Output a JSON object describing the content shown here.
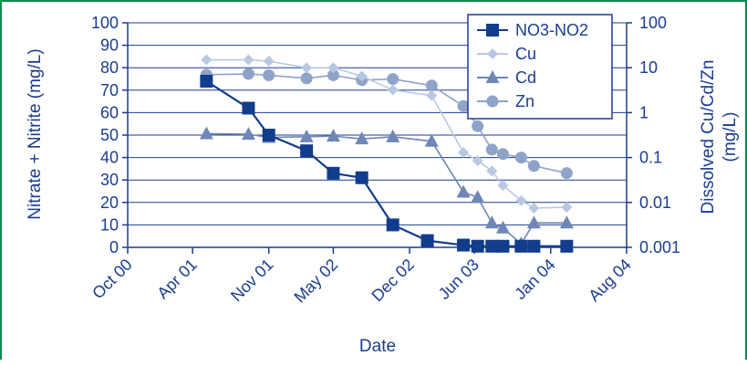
{
  "chart_data": {
    "type": "line",
    "xlabel": "Date",
    "ylabel": "Nitrate + Nitrite (mg/L)",
    "y2label_line1": "Dissolved Cu/Cd/Zn",
    "y2label_line2": "(mg/L)",
    "x_ticks": [
      {
        "label": "Oct 00",
        "date": "2000-10-01"
      },
      {
        "label": "Apr 01",
        "date": "2001-04-01"
      },
      {
        "label": "Nov 01",
        "date": "2001-11-01"
      },
      {
        "label": "May 02",
        "date": "2002-05-01"
      },
      {
        "label": "Dec 02",
        "date": "2002-12-01"
      },
      {
        "label": "Jun 03",
        "date": "2003-06-01"
      },
      {
        "label": "Jan 04",
        "date": "2004-01-01"
      },
      {
        "label": "Aug 04",
        "date": "2004-08-01"
      }
    ],
    "xlim": [
      "2000-10-01",
      "2004-08-01"
    ],
    "ylim": [
      0,
      100
    ],
    "y_ticks": [
      0,
      10,
      20,
      30,
      40,
      50,
      60,
      70,
      80,
      90,
      100
    ],
    "y2lim": [
      0.001,
      100
    ],
    "y2_scale": "log",
    "y2_ticks": [
      {
        "label": "0.001",
        "value": 0.001
      },
      {
        "label": "0.01",
        "value": 0.01
      },
      {
        "label": "0.1",
        "value": 0.1
      },
      {
        "label": "1",
        "value": 1
      },
      {
        "label": "10",
        "value": 10
      },
      {
        "label": "100",
        "value": 100
      }
    ],
    "grid": "horizontal",
    "legend": "top-right",
    "series": [
      {
        "name": "NO3-NO2",
        "axis": "left",
        "marker": "square",
        "color": "#123c8c",
        "points": [
          {
            "x": "2001-05-10",
            "y": 74
          },
          {
            "x": "2001-09-05",
            "y": 62
          },
          {
            "x": "2001-11-01",
            "y": 50
          },
          {
            "x": "2002-02-15",
            "y": 43
          },
          {
            "x": "2002-05-01",
            "y": 33
          },
          {
            "x": "2002-07-20",
            "y": 31
          },
          {
            "x": "2002-10-15",
            "y": 10
          },
          {
            "x": "2003-01-20",
            "y": 3
          },
          {
            "x": "2003-05-01",
            "y": 1
          },
          {
            "x": "2003-06-10",
            "y": 0.5
          },
          {
            "x": "2003-07-20",
            "y": 0.5
          },
          {
            "x": "2003-08-20",
            "y": 0.5
          },
          {
            "x": "2003-10-10",
            "y": 0.5
          },
          {
            "x": "2003-11-15",
            "y": 0.5
          },
          {
            "x": "2004-02-15",
            "y": 0.5
          }
        ]
      },
      {
        "name": "Cu",
        "axis": "right",
        "marker": "diamond",
        "color": "#b9c8e2",
        "points": [
          {
            "x": "2001-05-10",
            "y": 15
          },
          {
            "x": "2001-09-05",
            "y": 15
          },
          {
            "x": "2001-11-01",
            "y": 14
          },
          {
            "x": "2002-02-15",
            "y": 10
          },
          {
            "x": "2002-05-01",
            "y": 10
          },
          {
            "x": "2002-07-20",
            "y": 6.5
          },
          {
            "x": "2002-10-15",
            "y": 3.2
          },
          {
            "x": "2003-02-01",
            "y": 2.4
          },
          {
            "x": "2003-05-01",
            "y": 0.13
          },
          {
            "x": "2003-06-10",
            "y": 0.085
          },
          {
            "x": "2003-07-20",
            "y": 0.05
          },
          {
            "x": "2003-08-20",
            "y": 0.024
          },
          {
            "x": "2003-10-10",
            "y": 0.011
          },
          {
            "x": "2003-11-15",
            "y": 0.0075
          },
          {
            "x": "2004-02-15",
            "y": 0.0078
          }
        ]
      },
      {
        "name": "Cd",
        "axis": "right",
        "marker": "triangle",
        "color": "#6f86b6",
        "points": [
          {
            "x": "2001-05-10",
            "y": 0.34
          },
          {
            "x": "2001-09-05",
            "y": 0.33
          },
          {
            "x": "2001-11-01",
            "y": 0.28
          },
          {
            "x": "2002-02-15",
            "y": 0.29
          },
          {
            "x": "2002-05-01",
            "y": 0.3
          },
          {
            "x": "2002-07-20",
            "y": 0.26
          },
          {
            "x": "2002-10-15",
            "y": 0.29
          },
          {
            "x": "2003-02-01",
            "y": 0.23
          },
          {
            "x": "2003-05-01",
            "y": 0.017
          },
          {
            "x": "2003-06-10",
            "y": 0.013
          },
          {
            "x": "2003-07-20",
            "y": 0.0035
          },
          {
            "x": "2003-08-20",
            "y": 0.0027
          },
          {
            "x": "2003-10-10",
            "y": 0.0012
          },
          {
            "x": "2003-11-15",
            "y": 0.0035
          },
          {
            "x": "2004-02-15",
            "y": 0.0035
          }
        ]
      },
      {
        "name": "Zn",
        "axis": "right",
        "marker": "circle",
        "color": "#8fa3c8",
        "points": [
          {
            "x": "2001-05-10",
            "y": 7
          },
          {
            "x": "2001-09-05",
            "y": 7.3
          },
          {
            "x": "2001-11-01",
            "y": 6.8
          },
          {
            "x": "2002-02-15",
            "y": 5.8
          },
          {
            "x": "2002-05-01",
            "y": 6.8
          },
          {
            "x": "2002-07-20",
            "y": 5.3
          },
          {
            "x": "2002-10-15",
            "y": 5.6
          },
          {
            "x": "2003-02-01",
            "y": 4.0
          },
          {
            "x": "2003-05-01",
            "y": 1.4
          },
          {
            "x": "2003-06-10",
            "y": 0.5
          },
          {
            "x": "2003-07-20",
            "y": 0.15
          },
          {
            "x": "2003-08-20",
            "y": 0.12
          },
          {
            "x": "2003-10-10",
            "y": 0.1
          },
          {
            "x": "2003-11-15",
            "y": 0.065
          },
          {
            "x": "2004-02-15",
            "y": 0.045
          }
        ]
      }
    ]
  }
}
